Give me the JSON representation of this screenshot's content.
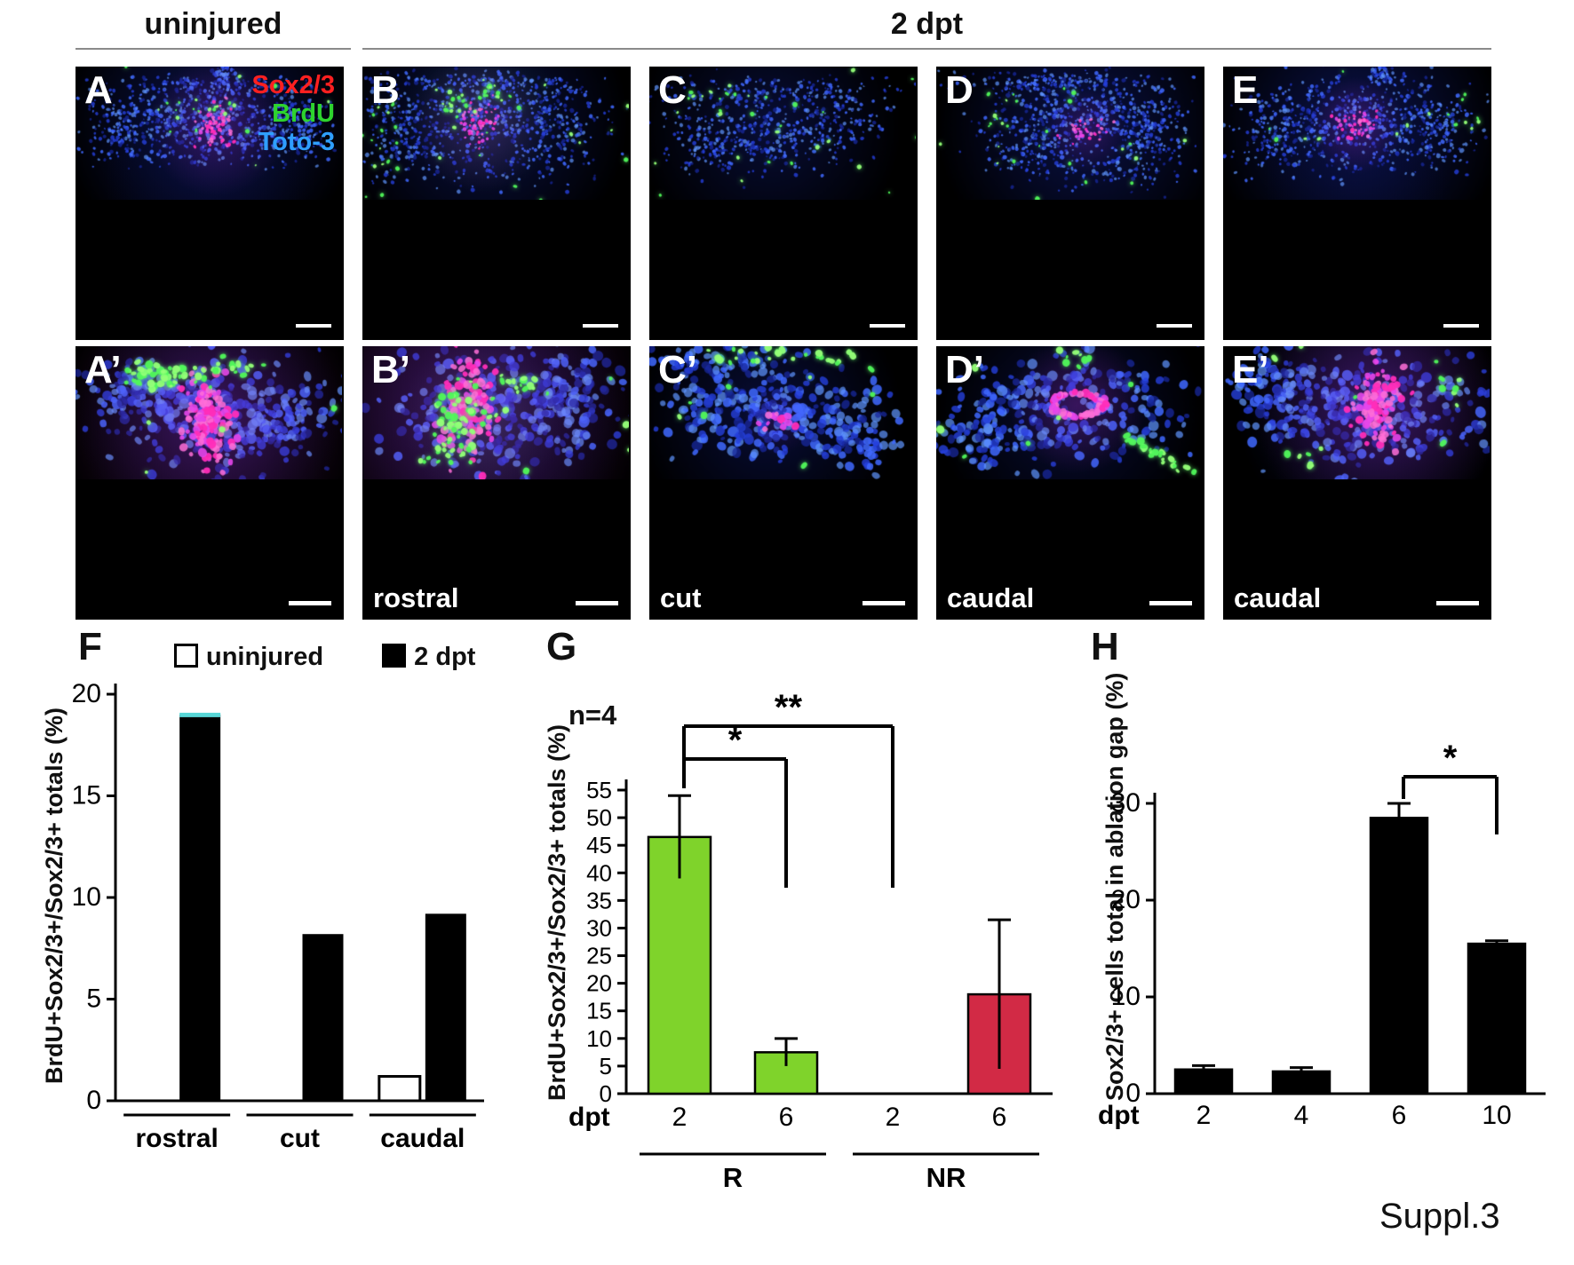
{
  "figure": {
    "header": {
      "left": "uninjured",
      "right": "2 dpt"
    },
    "panels_row1": [
      {
        "label": "A"
      },
      {
        "label": "B"
      },
      {
        "label": "C"
      },
      {
        "label": "D"
      },
      {
        "label": "E"
      }
    ],
    "panels_row2": [
      {
        "label": "A’",
        "caption": ""
      },
      {
        "label": "B’",
        "caption": "rostral"
      },
      {
        "label": "C’",
        "caption": "cut"
      },
      {
        "label": "D’",
        "caption": "caudal"
      },
      {
        "label": "E’",
        "caption": "caudal"
      }
    ],
    "legend_A": [
      {
        "label": "Sox2/3",
        "color": "#ff2020"
      },
      {
        "label": "BrdU",
        "color": "#2ed32e"
      },
      {
        "label": "Toto-3",
        "color": "#2f9fff"
      }
    ],
    "suppl_label": "Suppl.3"
  },
  "chart_data": [
    {
      "id": "F",
      "type": "bar",
      "ylabel": "BrdU+Sox2/3+/Sox2/3+ totals (%)",
      "ylim": [
        0,
        20
      ],
      "yticks": [
        0,
        5,
        10,
        15,
        20
      ],
      "legend": [
        {
          "label": "uninjured",
          "fill": "#ffffff"
        },
        {
          "label": "2 dpt",
          "fill": "#000000"
        }
      ],
      "categories": [
        "rostral",
        "cut",
        "caudal"
      ],
      "series": [
        {
          "name": "uninjured",
          "fill": "#ffffff",
          "values": [
            0,
            0,
            1.2
          ]
        },
        {
          "name": "2 dpt",
          "fill": "#000000",
          "values": [
            19,
            8.2,
            9.2
          ],
          "top_caps": [
            "#58d6d6",
            null,
            null
          ]
        }
      ]
    },
    {
      "id": "G",
      "type": "bar",
      "annotation": "n=4",
      "ylabel": "BrdU+Sox2/3+/Sox2/3+ totals (%)",
      "ylim": [
        0,
        55
      ],
      "yticks": [
        0,
        5,
        10,
        15,
        20,
        25,
        30,
        35,
        40,
        45,
        50,
        55
      ],
      "xlabel": "dpt",
      "bars": [
        {
          "tick": "2",
          "group": "R",
          "value": 46.5,
          "err": 7.5,
          "fill": "#7fd32b"
        },
        {
          "tick": "6",
          "group": "R",
          "value": 7.5,
          "err": 2.5,
          "fill": "#7fd32b"
        },
        {
          "tick": "2",
          "group": "NR",
          "value": 0,
          "err": 0,
          "fill": "#d22a45"
        },
        {
          "tick": "6",
          "group": "NR",
          "value": 18,
          "err": 13.5,
          "fill": "#d22a45"
        }
      ],
      "groups": [
        {
          "label": "R",
          "color": "#4fc41f",
          "span": [
            0,
            1
          ]
        },
        {
          "label": "NR",
          "color": "#d42a3c",
          "span": [
            2,
            3
          ]
        }
      ],
      "significance": [
        {
          "label": "*",
          "from": 0,
          "to": 1
        },
        {
          "label": "**",
          "from": 0,
          "to": 2
        }
      ]
    },
    {
      "id": "H",
      "type": "bar",
      "ylabel": "Sox2/3+ cells total in ablation gap (%)",
      "ylim": [
        0,
        30
      ],
      "yticks": [
        0,
        10,
        20,
        30
      ],
      "xlabel": "dpt",
      "bars": [
        {
          "tick": "2",
          "value": 2.5,
          "err": 0.4,
          "fill": "#000000"
        },
        {
          "tick": "4",
          "value": 2.3,
          "err": 0.4,
          "fill": "#000000"
        },
        {
          "tick": "6",
          "value": 28.5,
          "err": 1.5,
          "fill": "#000000"
        },
        {
          "tick": "10",
          "value": 15.5,
          "err": 0.3,
          "fill": "#000000"
        }
      ],
      "significance": [
        {
          "label": "*",
          "from": 2,
          "to": 3
        }
      ]
    }
  ]
}
